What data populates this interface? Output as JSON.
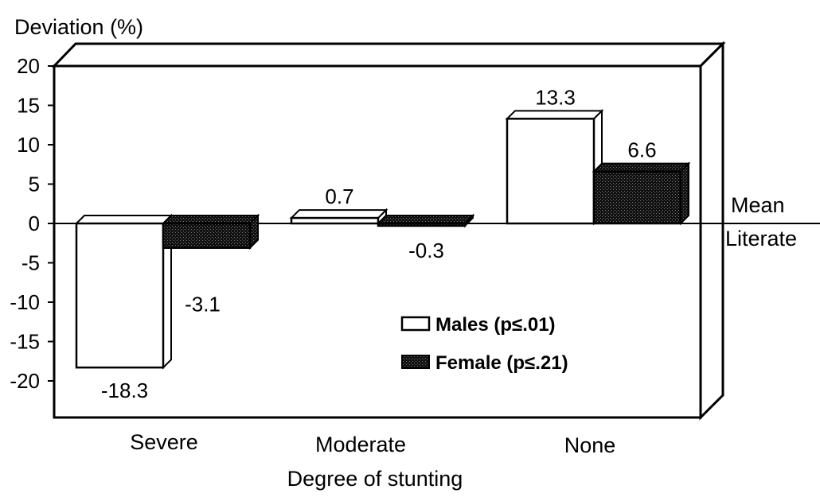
{
  "chart_data": {
    "type": "bar",
    "ylabel": "Deviation (%)",
    "xlabel": "Degree of stunting",
    "categories": [
      "Severe",
      "Moderate",
      "None"
    ],
    "series": [
      {
        "name": "Males (p≤.01)",
        "values": [
          -18.3,
          0.7,
          13.3
        ],
        "color": "#ffffff"
      },
      {
        "name": "Female (p≤.21)",
        "values": [
          -3.1,
          -0.3,
          6.6
        ],
        "color": "#1a1a1a"
      }
    ],
    "data_labels": {
      "males": [
        "-18.3",
        "0.7",
        "13.3"
      ],
      "females": [
        "-3.1",
        "-0.3",
        "6.6"
      ]
    },
    "yticks": [
      "20",
      "15",
      "10",
      "5",
      "0",
      "-5",
      "-10",
      "-15",
      "-20"
    ],
    "ylim": [
      -25,
      20
    ],
    "reference_line": {
      "label_top": "Mean",
      "label_bottom": "Literate",
      "value": 0
    },
    "legend_position": "lower-right",
    "grid": false
  }
}
